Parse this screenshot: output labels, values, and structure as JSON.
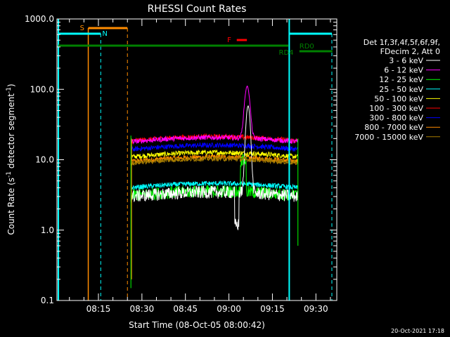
{
  "chart_data": {
    "type": "line",
    "title": "RHESSI Count Rates",
    "xlabel": "Start Time (08-Oct-05 08:00:42)",
    "ylabel_main": "Count Rate (s",
    "ylabel_sup1": "-1",
    "ylabel_mid": " detector segment",
    "ylabel_sup2": "-1",
    "ylabel_end": ")",
    "yscale": "log",
    "ylim": [
      0.1,
      1000
    ],
    "xlim_minutes": [
      0.7,
      97.2
    ],
    "y_ticks": [
      {
        "value": 1000,
        "label": "1000.0"
      },
      {
        "value": 100,
        "label": "100.0"
      },
      {
        "value": 10,
        "label": "10.0"
      },
      {
        "value": 1,
        "label": "1.0"
      },
      {
        "value": 0.1,
        "label": "0.1"
      }
    ],
    "x_ticks": [
      {
        "minute": 15,
        "label": "08:15"
      },
      {
        "minute": 30,
        "label": "08:30"
      },
      {
        "minute": 45,
        "label": "08:45"
      },
      {
        "minute": 60,
        "label": "09:00"
      },
      {
        "minute": 75,
        "label": "09:15"
      },
      {
        "minute": 90,
        "label": "09:30"
      }
    ],
    "legend_header": [
      "Det 1f,3f,4f,5f,6f,9f,",
      "FDecim 2, Att 0"
    ],
    "series": [
      {
        "name": "3 - 6 keV",
        "color": "#ffffff",
        "level": 3.0
      },
      {
        "name": "6 - 12 keV",
        "color": "#ff00ff",
        "level": 18.0
      },
      {
        "name": "12 - 25 keV",
        "color": "#00ff00",
        "level": 3.1
      },
      {
        "name": "25 - 50 keV",
        "color": "#00ffff",
        "level": 4.0
      },
      {
        "name": "50 - 100 keV",
        "color": "#ffff00",
        "level": 11.0
      },
      {
        "name": "100 - 300 keV",
        "color": "#ff0000",
        "level": 18.5
      },
      {
        "name": "300 - 800 keV",
        "color": "#0000ff",
        "level": 14.0
      },
      {
        "name": "800 - 7000 keV",
        "color": "#ff8c00",
        "level": 9.5
      },
      {
        "name": "7000 - 15000 keV",
        "color": "#a67c00",
        "level": 9.0
      }
    ],
    "flags": [
      {
        "label": "S",
        "color": "#ff8c00"
      },
      {
        "label": "N",
        "color": "#00ffff"
      },
      {
        "label": "F",
        "color": "#ff0000"
      },
      {
        "label": "RD0",
        "color": "#008000"
      },
      {
        "label": "RD4",
        "color": "#008000"
      }
    ],
    "footer": "20-Oct-2021 17:18"
  }
}
